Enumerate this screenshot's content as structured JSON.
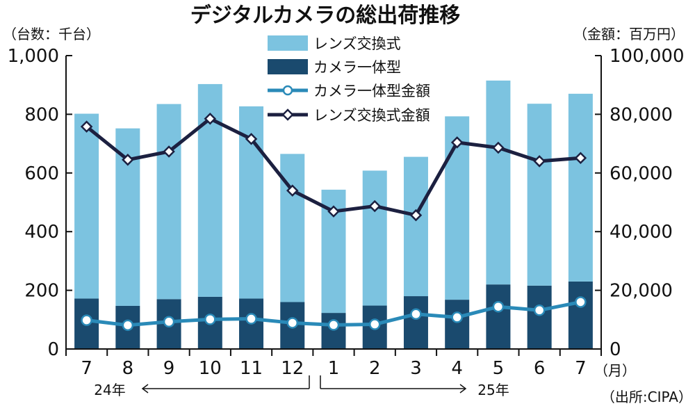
{
  "chart_data": {
    "type": "bar",
    "title": "デジタルカメラの総出荷推移",
    "left_unit_label": "（台数：千台）",
    "right_unit_label": "（金額：百万円）",
    "month_unit_label": "（月）",
    "source_label": "（出所:CIPA）",
    "year_labels": [
      "24年",
      "25年"
    ],
    "categories": [
      "7",
      "8",
      "9",
      "10",
      "11",
      "12",
      "1",
      "2",
      "3",
      "4",
      "5",
      "6",
      "7"
    ],
    "left_axis": {
      "ylim": [
        0,
        1000
      ],
      "ticks": [
        0,
        200,
        400,
        600,
        800,
        1000
      ],
      "tick_labels": [
        "0",
        "200",
        "400",
        "600",
        "800",
        "1,000"
      ]
    },
    "right_axis": {
      "ylim": [
        0,
        100000
      ],
      "ticks": [
        0,
        20000,
        40000,
        60000,
        80000,
        100000
      ],
      "tick_labels": [
        "0",
        "20,000",
        "40,000",
        "60,000",
        "80,000",
        "100,000"
      ]
    },
    "series": [
      {
        "name": "レンズ交換式",
        "kind": "bar-stack-top",
        "axis": "left",
        "color": "#7cc3e0",
        "values": [
          630,
          605,
          665,
          725,
          655,
          505,
          420,
          460,
          475,
          625,
          695,
          620,
          640
        ]
      },
      {
        "name": "カメラ一体型",
        "kind": "bar-stack-bottom",
        "axis": "left",
        "color": "#1a4a6e",
        "values": [
          172,
          147,
          170,
          178,
          172,
          160,
          123,
          148,
          180,
          168,
          220,
          216,
          230
        ]
      },
      {
        "name": "カメラ一体型金額",
        "kind": "line",
        "axis": "right",
        "color": "#2a8ab8",
        "values": [
          9800,
          8100,
          9300,
          10100,
          10300,
          8900,
          8200,
          8400,
          11900,
          10800,
          14400,
          13200,
          16000
        ]
      },
      {
        "name": "レンズ交換式金額",
        "kind": "line",
        "axis": "right",
        "color": "#1c2040",
        "values": [
          75800,
          64500,
          67300,
          78500,
          71600,
          54000,
          46900,
          48700,
          45600,
          70400,
          68600,
          64000,
          65100
        ]
      }
    ],
    "legend_position": "top-center",
    "grid": false
  }
}
